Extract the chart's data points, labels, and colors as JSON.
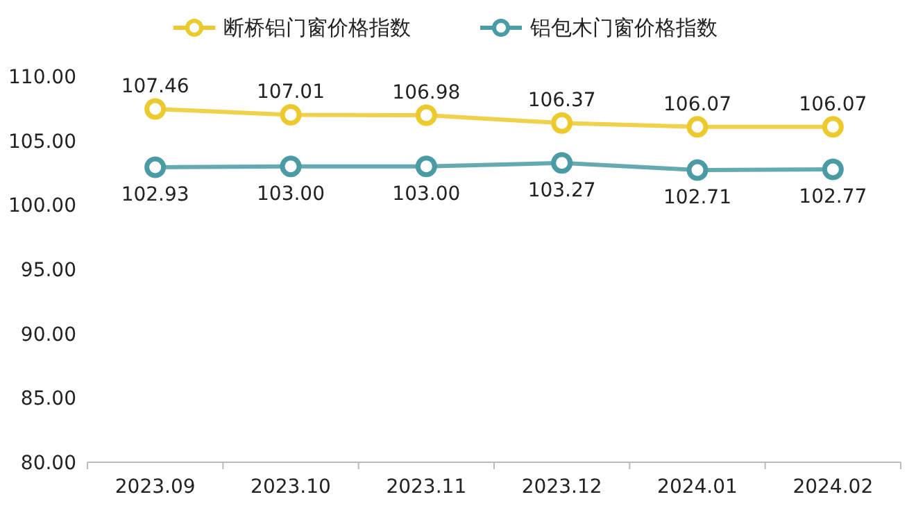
{
  "chart_data": {
    "type": "line",
    "categories": [
      "2023.09",
      "2023.10",
      "2023.11",
      "2023.12",
      "2024.01",
      "2024.02"
    ],
    "series": [
      {
        "name": "断桥铝门窗价格指数",
        "color": "#ecc92c",
        "values": [
          107.46,
          107.01,
          106.98,
          106.37,
          106.07,
          106.07
        ],
        "value_labels": [
          "107.46",
          "107.01",
          "106.98",
          "106.37",
          "106.07",
          "106.07"
        ]
      },
      {
        "name": "铝包木门窗价格指数",
        "color": "#4a9ba3",
        "values": [
          102.93,
          103.0,
          103.0,
          103.27,
          102.71,
          102.77
        ],
        "value_labels": [
          "102.93",
          "103.00",
          "103.00",
          "103.27",
          "102.71",
          "102.77"
        ]
      }
    ],
    "ylim": [
      80,
      110
    ],
    "yticks": [
      {
        "value": 80,
        "label": "80.00"
      },
      {
        "value": 85,
        "label": "85.00"
      },
      {
        "value": 90,
        "label": "90.00"
      },
      {
        "value": 95,
        "label": "95.00"
      },
      {
        "value": 100,
        "label": "100.00"
      },
      {
        "value": 105,
        "label": "105.00"
      },
      {
        "value": 110,
        "label": "110.00"
      }
    ],
    "marker": "circle",
    "legend": "top",
    "grid": false
  }
}
